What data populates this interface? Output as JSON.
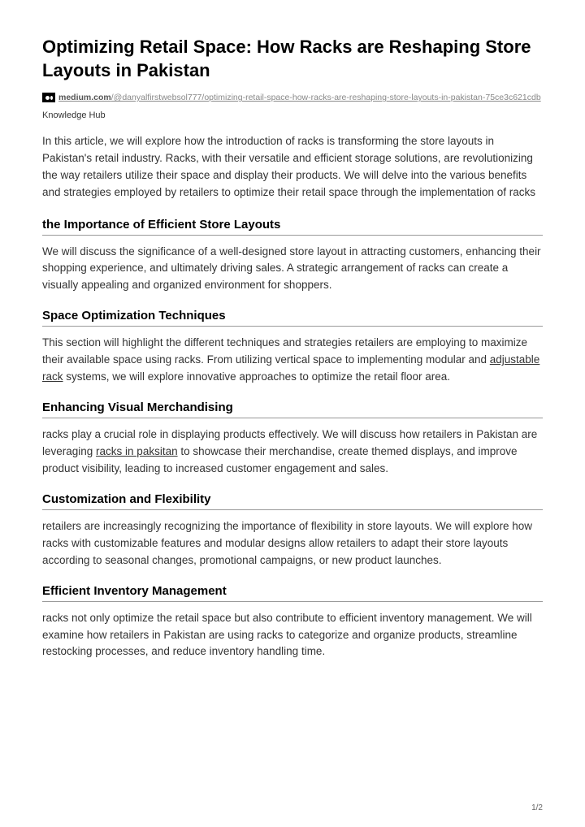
{
  "title": "Optimizing Retail Space: How Racks are Reshaping Store Layouts in Pakistan",
  "source": {
    "domain": "medium.com",
    "path": "/@danyalfirstwebsol777/optimizing-retail-space-how-racks-are-reshaping-store-layouts-in-pakistan-75ce3c621cdb"
  },
  "author": "Knowledge Hub",
  "intro": "In this article, we will explore how the introduction of racks is transforming the store layouts in Pakistan's retail industry. Racks, with their versatile and efficient storage solutions, are revolutionizing the way retailers utilize their space and display their products. We will delve into the various benefits and strategies employed by retailers to optimize their retail space through the implementation of racks",
  "sections": {
    "s1": {
      "heading": "the Importance of Efficient Store Layouts",
      "text": "We will discuss the significance of a well-designed store layout in attracting customers, enhancing their shopping experience, and ultimately driving sales. A strategic arrangement of racks can create a visually appealing and organized environment for shoppers."
    },
    "s2": {
      "heading": "Space Optimization Techniques",
      "pre": "This section will highlight the different techniques and strategies retailers are employing to maximize their available space using racks. From utilizing vertical space to implementing modular and ",
      "link": "adjustable rack",
      "post": " systems, we will explore innovative approaches to optimize the retail floor area."
    },
    "s3": {
      "heading": "Enhancing Visual Merchandising",
      "pre": "racks play a crucial role in displaying products effectively. We will discuss how retailers in Pakistan are leveraging ",
      "link": "racks in paksitan",
      "post": " to showcase their merchandise, create themed displays, and improve product visibility, leading to increased customer engagement and sales."
    },
    "s4": {
      "heading": "Customization and Flexibility",
      "text": "retailers are increasingly recognizing the importance of flexibility in store layouts. We will explore how racks with customizable features and modular designs allow retailers to adapt their store layouts according to seasonal changes, promotional campaigns, or new product launches."
    },
    "s5": {
      "heading": "Efficient Inventory Management",
      "text": "racks not only optimize the retail space but also contribute to efficient inventory management. We will examine how retailers in Pakistan are using racks to categorize and organize products, streamline restocking processes, and reduce inventory handling time."
    }
  },
  "pageNum": "1/2"
}
